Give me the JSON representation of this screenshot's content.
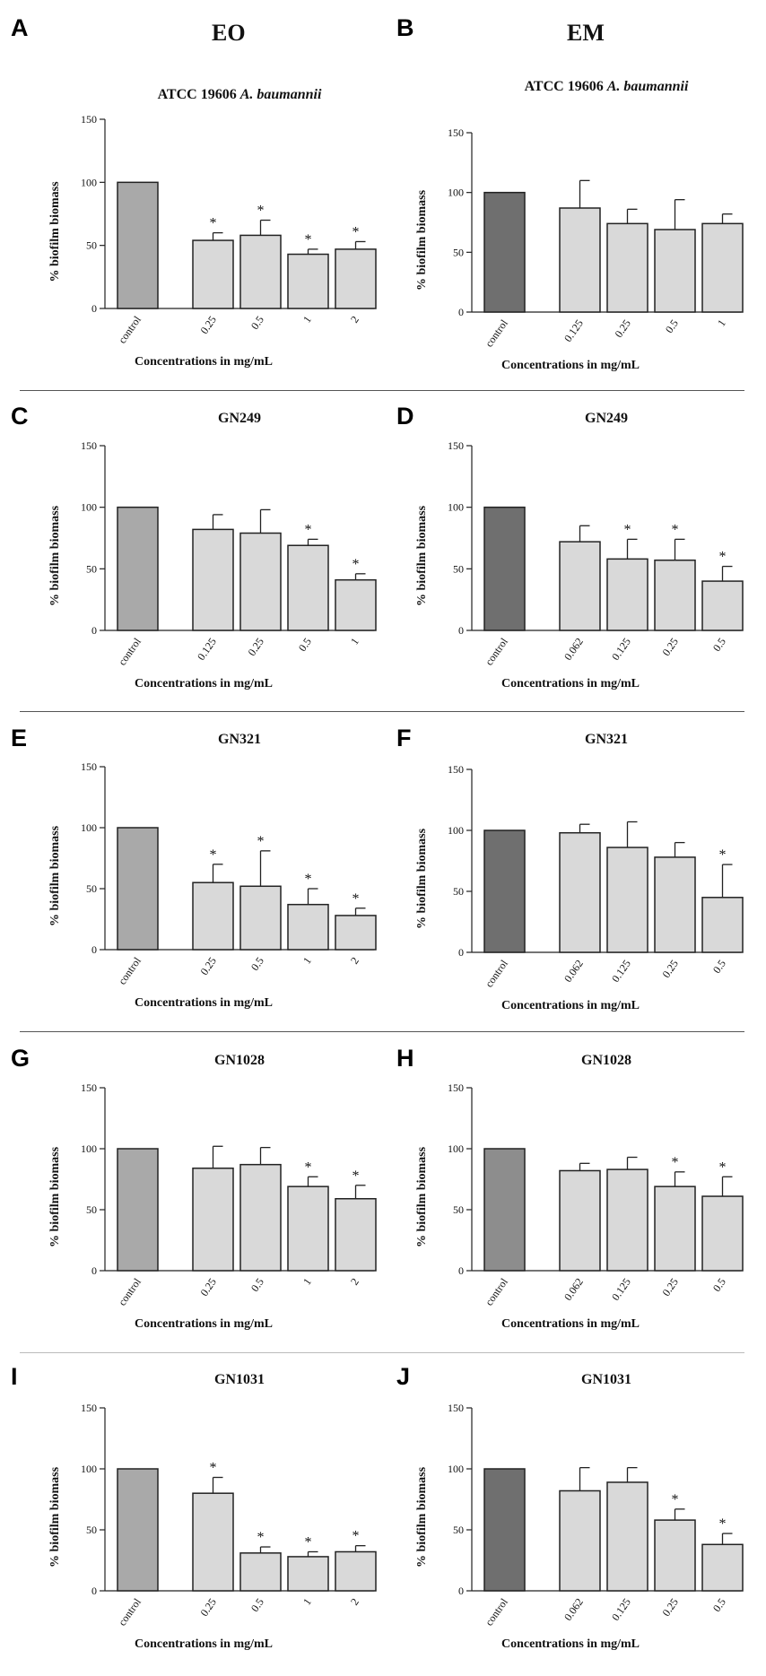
{
  "columns": {
    "left": "EO",
    "right": "EM"
  },
  "axis": {
    "ylabel": "% biofilm biomass",
    "xlabel": "Concentrations in mg/mL"
  },
  "colors": {
    "control_eo": "#a9a9a9",
    "control_em": "#6f6f6f",
    "control_light": "#8d8d8d",
    "bar": "#d9d9d9",
    "stroke": "#222222"
  },
  "chart_data": [
    {
      "letter": "A",
      "type": "bar",
      "title_pre": "ATCC 19606 ",
      "title_italic": "A. baumannii",
      "title": "ATCC 19606 A. baumannii",
      "categories": [
        "control",
        "0.25",
        "0.5",
        "1",
        "2"
      ],
      "values": [
        100,
        54,
        58,
        43,
        47
      ],
      "errors": [
        0,
        6,
        12,
        4,
        6
      ],
      "significant": [
        false,
        true,
        true,
        true,
        true
      ],
      "ylim": [
        0,
        150
      ],
      "yticks": [
        0,
        50,
        100,
        150
      ],
      "control_color": "control_eo"
    },
    {
      "letter": "B",
      "type": "bar",
      "title_pre": "ATCC 19606 ",
      "title_italic": "A. baumannii",
      "title": "ATCC 19606 A. baumannii",
      "categories": [
        "control",
        "0.125",
        "0.25",
        "0.5",
        "1"
      ],
      "values": [
        100,
        87,
        74,
        69,
        74
      ],
      "errors": [
        0,
        23,
        12,
        25,
        8
      ],
      "significant": [
        false,
        false,
        false,
        false,
        false
      ],
      "ylim": [
        0,
        150
      ],
      "yticks": [
        0,
        50,
        100,
        150
      ],
      "control_color": "control_em"
    },
    {
      "letter": "C",
      "type": "bar",
      "title": "GN249",
      "categories": [
        "control",
        "0.125",
        "0.25",
        "0.5",
        "1"
      ],
      "values": [
        100,
        82,
        79,
        69,
        41
      ],
      "errors": [
        0,
        12,
        19,
        5,
        5
      ],
      "significant": [
        false,
        false,
        false,
        true,
        true
      ],
      "ylim": [
        0,
        150
      ],
      "yticks": [
        0,
        50,
        100,
        150
      ],
      "control_color": "control_eo"
    },
    {
      "letter": "D",
      "type": "bar",
      "title": "GN249",
      "categories": [
        "control",
        "0.062",
        "0.125",
        "0.25",
        "0.5"
      ],
      "values": [
        100,
        72,
        58,
        57,
        40
      ],
      "errors": [
        0,
        13,
        16,
        17,
        12
      ],
      "significant": [
        false,
        false,
        true,
        true,
        true
      ],
      "ylim": [
        0,
        150
      ],
      "yticks": [
        0,
        50,
        100,
        150
      ],
      "control_color": "control_em"
    },
    {
      "letter": "E",
      "type": "bar",
      "title": "GN321",
      "categories": [
        "control",
        "0.25",
        "0.5",
        "1",
        "2"
      ],
      "values": [
        100,
        55,
        52,
        37,
        28
      ],
      "errors": [
        0,
        15,
        29,
        13,
        6
      ],
      "significant": [
        false,
        true,
        true,
        true,
        true
      ],
      "ylim": [
        0,
        150
      ],
      "yticks": [
        0,
        50,
        100,
        150
      ],
      "control_color": "control_eo"
    },
    {
      "letter": "F",
      "type": "bar",
      "title": "GN321",
      "categories": [
        "control",
        "0.062",
        "0.125",
        "0.25",
        "0.5"
      ],
      "values": [
        100,
        98,
        86,
        78,
        45
      ],
      "errors": [
        0,
        7,
        21,
        12,
        27
      ],
      "significant": [
        false,
        false,
        false,
        false,
        true
      ],
      "ylim": [
        0,
        150
      ],
      "yticks": [
        0,
        50,
        100,
        150
      ],
      "control_color": "control_em"
    },
    {
      "letter": "G",
      "type": "bar",
      "title": "GN1028",
      "categories": [
        "control",
        "0.25",
        "0.5",
        "1",
        "2"
      ],
      "values": [
        100,
        84,
        87,
        69,
        59
      ],
      "errors": [
        0,
        18,
        14,
        8,
        11
      ],
      "significant": [
        false,
        false,
        false,
        true,
        true
      ],
      "ylim": [
        0,
        150
      ],
      "yticks": [
        0,
        50,
        100,
        150
      ],
      "control_color": "control_eo"
    },
    {
      "letter": "H",
      "type": "bar",
      "title": "GN1028",
      "categories": [
        "control",
        "0.062",
        "0.125",
        "0.25",
        "0.5"
      ],
      "values": [
        100,
        82,
        83,
        69,
        61
      ],
      "errors": [
        0,
        6,
        10,
        12,
        16
      ],
      "significant": [
        false,
        false,
        false,
        true,
        true
      ],
      "ylim": [
        0,
        150
      ],
      "yticks": [
        0,
        50,
        100,
        150
      ],
      "control_color": "control_light"
    },
    {
      "letter": "I",
      "type": "bar",
      "title": "GN1031",
      "categories": [
        "control",
        "0.25",
        "0.5",
        "1",
        "2"
      ],
      "values": [
        100,
        80,
        31,
        28,
        32
      ],
      "errors": [
        0,
        13,
        5,
        4,
        5
      ],
      "significant": [
        false,
        true,
        true,
        true,
        true
      ],
      "ylim": [
        0,
        150
      ],
      "yticks": [
        0,
        50,
        100,
        150
      ],
      "control_color": "control_eo"
    },
    {
      "letter": "J",
      "type": "bar",
      "title": "GN1031",
      "categories": [
        "control",
        "0.062",
        "0.125",
        "0.25",
        "0.5"
      ],
      "values": [
        100,
        82,
        89,
        58,
        38
      ],
      "errors": [
        0,
        19,
        12,
        9,
        9
      ],
      "significant": [
        false,
        false,
        false,
        true,
        true
      ],
      "ylim": [
        0,
        150
      ],
      "yticks": [
        0,
        50,
        100,
        150
      ],
      "control_color": "control_em"
    }
  ]
}
